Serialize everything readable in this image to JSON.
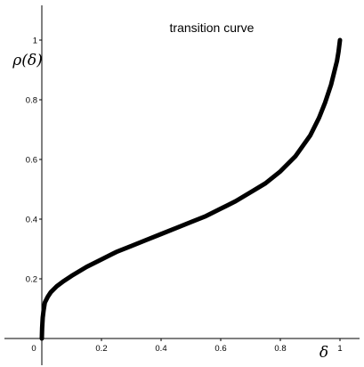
{
  "chart_data": {
    "type": "line",
    "title": "transition curve",
    "xlabel": "δ",
    "ylabel": "ρ(δ)",
    "xlim": [
      0,
      1.07
    ],
    "ylim": [
      -0.09,
      1.12
    ],
    "x_ticks": [
      "0",
      "0.2",
      "0.4",
      "0.6",
      "0.8",
      "1"
    ],
    "y_ticks": [
      "0.2",
      "0.4",
      "0.6",
      "0.8",
      "1"
    ],
    "x_tick_values": [
      0,
      0.2,
      0.4,
      0.6,
      0.8,
      1
    ],
    "y_tick_values": [
      0.2,
      0.4,
      0.6,
      0.8,
      1
    ],
    "grid": false,
    "series": [
      {
        "color": "#000000",
        "x": [
          0,
          0.001,
          0.003,
          0.006,
          0.01,
          0.02,
          0.03,
          0.05,
          0.07,
          0.1,
          0.15,
          0.2,
          0.25,
          0.3,
          0.35,
          0.4,
          0.45,
          0.5,
          0.55,
          0.6,
          0.65,
          0.7,
          0.75,
          0.8,
          0.85,
          0.9,
          0.93,
          0.95,
          0.97,
          0.98,
          0.99,
          0.995,
          1
        ],
        "y": [
          0,
          0.035,
          0.07,
          0.095,
          0.12,
          0.14,
          0.155,
          0.175,
          0.19,
          0.21,
          0.24,
          0.265,
          0.29,
          0.31,
          0.33,
          0.35,
          0.37,
          0.39,
          0.41,
          0.435,
          0.46,
          0.49,
          0.52,
          0.56,
          0.61,
          0.68,
          0.74,
          0.79,
          0.85,
          0.89,
          0.93,
          0.96,
          1.0
        ]
      }
    ]
  }
}
